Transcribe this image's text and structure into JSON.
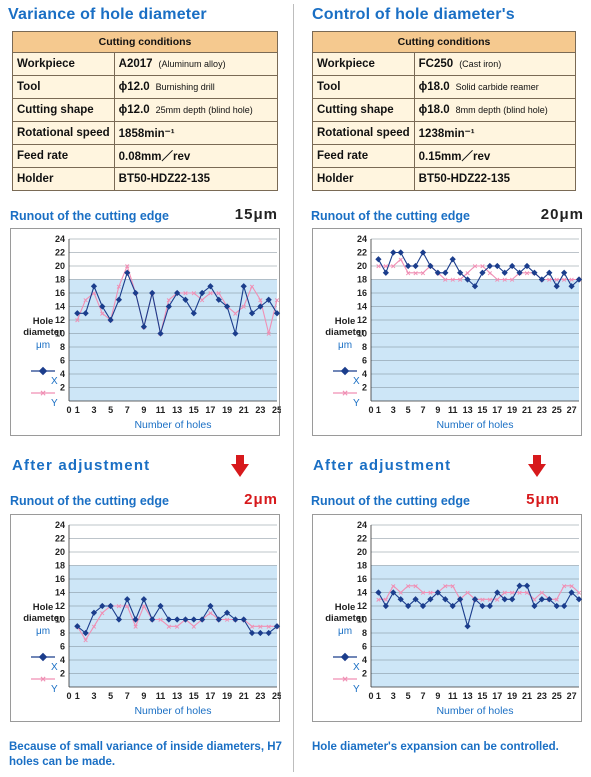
{
  "left": {
    "heading": "Variance of hole diameter",
    "table": {
      "header": "Cutting conditions",
      "rows": [
        {
          "key": "Workpiece",
          "value": "A2017",
          "sub": "(Aluminum alloy)"
        },
        {
          "key": "Tool",
          "value": "ϕ12.0",
          "sub": "Burnishing drill"
        },
        {
          "key": "Cutting shape",
          "value": "ϕ12.0",
          "sub": "25mm depth (blind hole)"
        },
        {
          "key": "Rotational speed",
          "value": "1858min⁻¹",
          "sub": ""
        },
        {
          "key": "Feed rate",
          "value": "0.08mm／rev",
          "sub": ""
        },
        {
          "key": "Holder",
          "value": "BT50-HDZ22-135",
          "sub": ""
        }
      ]
    },
    "before": {
      "runout_label": "Runout of the cutting edge",
      "runout_value": "15μm"
    },
    "after_label": "After adjustment",
    "after": {
      "runout_label": "Runout of the cutting edge",
      "runout_value": "2μm"
    },
    "caption": "Because of small variance of inside diameters, H7 holes can be made."
  },
  "right": {
    "heading": "Control of hole diameter's",
    "table": {
      "header": "Cutting conditions",
      "rows": [
        {
          "key": "Workpiece",
          "value": "FC250",
          "sub": "(Cast iron)"
        },
        {
          "key": "Tool",
          "value": "ϕ18.0",
          "sub": "Solid carbide reamer"
        },
        {
          "key": "Cutting shape",
          "value": "ϕ18.0",
          "sub": "8mm depth (blind hole)"
        },
        {
          "key": "Rotational speed",
          "value": "1238min⁻¹",
          "sub": ""
        },
        {
          "key": "Feed rate",
          "value": "0.15mm／rev",
          "sub": ""
        },
        {
          "key": "Holder",
          "value": "BT50-HDZ22-135",
          "sub": ""
        }
      ]
    },
    "before": {
      "runout_label": "Runout of the cutting edge",
      "runout_value": "20μm"
    },
    "after_label": "After adjustment",
    "after": {
      "runout_label": "Runout of the cutting edge",
      "runout_value": "5μm"
    },
    "caption": "Hole diameter's expansion can be controlled."
  },
  "colors": {
    "accent": "#1a6fc4",
    "runout_red": "#d7191c",
    "series_x": "#1b3d8c",
    "series_y": "#f08fb4",
    "band": "#cde6f7",
    "table_head": "#f5c98f",
    "table_body": "#fff5df"
  },
  "chart_data": [
    {
      "id": "left-before",
      "type": "line",
      "ylabel": "Hole diameter",
      "yunit": "μm",
      "xlabel": "Number of holes",
      "xlim": [
        0,
        25
      ],
      "ylim": [
        0,
        24
      ],
      "band": [
        0,
        18
      ],
      "xticks": [
        0,
        1,
        3,
        5,
        7,
        9,
        11,
        13,
        15,
        17,
        19,
        21,
        23,
        25
      ],
      "yticks": [
        2,
        4,
        6,
        8,
        10,
        12,
        14,
        16,
        18,
        20,
        22,
        24
      ],
      "series": [
        {
          "name": "X",
          "values": [
            13,
            13,
            17,
            14,
            12,
            15,
            19,
            16,
            11,
            16,
            10,
            14,
            16,
            15,
            13,
            16,
            17,
            15,
            14,
            10,
            17,
            13,
            14,
            15,
            13
          ]
        },
        {
          "name": "Y",
          "values": [
            12,
            15,
            16,
            13,
            12,
            17,
            20,
            16,
            11,
            16,
            10,
            15,
            16,
            16,
            16,
            15,
            16,
            16,
            14,
            13,
            14,
            17,
            15,
            10,
            15
          ]
        }
      ]
    },
    {
      "id": "left-after",
      "type": "line",
      "ylabel": "Hole diameter",
      "yunit": "μm",
      "xlabel": "Number of holes",
      "xlim": [
        0,
        25
      ],
      "ylim": [
        0,
        24
      ],
      "band": [
        0,
        18
      ],
      "xticks": [
        0,
        1,
        3,
        5,
        7,
        9,
        11,
        13,
        15,
        17,
        19,
        21,
        23,
        25
      ],
      "yticks": [
        2,
        4,
        6,
        8,
        10,
        12,
        14,
        16,
        18,
        20,
        22,
        24
      ],
      "series": [
        {
          "name": "X",
          "values": [
            9,
            8,
            11,
            12,
            12,
            10,
            13,
            10,
            13,
            10,
            12,
            10,
            10,
            10,
            10,
            10,
            12,
            10,
            11,
            10,
            10,
            8,
            8,
            8,
            9
          ]
        },
        {
          "name": "Y",
          "values": [
            9,
            7,
            9,
            11,
            12,
            12,
            12,
            9,
            12,
            10,
            10,
            9,
            9,
            10,
            9,
            10,
            11,
            10,
            10,
            10,
            10,
            9,
            9,
            9,
            9
          ]
        }
      ]
    },
    {
      "id": "right-before",
      "type": "line",
      "ylabel": "Hole diameter",
      "yunit": "μm",
      "xlabel": "Number of holes",
      "xlim": [
        0,
        28
      ],
      "ylim": [
        0,
        24
      ],
      "band": [
        0,
        18
      ],
      "xticks": [
        0,
        1,
        3,
        5,
        7,
        9,
        11,
        13,
        15,
        17,
        19,
        21,
        23,
        25,
        27
      ],
      "yticks": [
        2,
        4,
        6,
        8,
        10,
        12,
        14,
        16,
        18,
        20,
        22,
        24
      ],
      "series": [
        {
          "name": "X",
          "values": [
            21,
            19,
            22,
            22,
            20,
            20,
            22,
            20,
            19,
            19,
            21,
            19,
            18,
            17,
            19,
            20,
            20,
            19,
            20,
            19,
            20,
            19,
            18,
            19,
            17,
            19,
            17,
            18
          ]
        },
        {
          "name": "Y",
          "values": [
            20,
            20,
            20,
            21,
            19,
            19,
            19,
            20,
            19,
            18,
            18,
            18,
            19,
            20,
            20,
            19,
            18,
            18,
            18,
            19,
            19,
            19,
            18,
            18,
            18,
            18,
            18,
            18
          ]
        }
      ]
    },
    {
      "id": "right-after",
      "type": "line",
      "ylabel": "Hole diameter",
      "yunit": "μm",
      "xlabel": "Number of holes",
      "xlim": [
        0,
        28
      ],
      "ylim": [
        0,
        24
      ],
      "band": [
        0,
        18
      ],
      "xticks": [
        0,
        1,
        3,
        5,
        7,
        9,
        11,
        13,
        15,
        17,
        19,
        21,
        23,
        25,
        27
      ],
      "yticks": [
        2,
        4,
        6,
        8,
        10,
        12,
        14,
        16,
        18,
        20,
        22,
        24
      ],
      "series": [
        {
          "name": "X",
          "values": [
            14,
            12,
            14,
            13,
            12,
            13,
            12,
            13,
            14,
            13,
            12,
            13,
            9,
            13,
            12,
            12,
            14,
            13,
            13,
            15,
            15,
            12,
            13,
            13,
            12,
            12,
            14,
            13
          ]
        },
        {
          "name": "Y",
          "values": [
            13,
            13,
            15,
            14,
            15,
            15,
            14,
            14,
            14,
            15,
            15,
            13,
            14,
            13,
            13,
            13,
            13,
            14,
            14,
            14,
            14,
            13,
            14,
            13,
            13,
            15,
            15,
            14
          ]
        }
      ]
    }
  ]
}
